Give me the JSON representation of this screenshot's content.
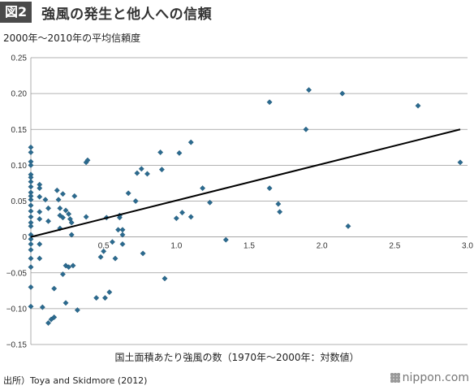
{
  "figure": {
    "badge": "図2",
    "title": "強風の発生と他人への信頼"
  },
  "source_note": "出所）Toya and Skidmore (2012)",
  "brand": "nippon.com",
  "chart_data": {
    "type": "scatter",
    "title": "強風の発生と他人への信頼",
    "ylabel": "2000年～2010年の平均信頼度",
    "xlabel": "国土面積あたり強風の数（1970年～2000年：対数値）",
    "xlim": [
      0,
      3.0
    ],
    "ylim": [
      -0.15,
      0.25
    ],
    "xticks": [
      0.5,
      1.0,
      1.5,
      2.0,
      2.5,
      3.0
    ],
    "xtick_labels": [
      "0.5",
      "1.0",
      "1.5",
      "2.0",
      "2.5",
      "3.0"
    ],
    "yticks": [
      0.25,
      0.2,
      0.15,
      0.1,
      0.05,
      0,
      -0.05,
      -0.1,
      -0.15
    ],
    "ytick_labels": [
      "0.25",
      "0.20",
      "0.15",
      "0.10",
      "0.05",
      "0",
      "−0.05",
      "−0.10",
      "−0.15"
    ],
    "grid": "horizontal",
    "point_color": "#2b6a8f",
    "line_color": "#000000",
    "trendline": {
      "x": [
        0,
        2.95
      ],
      "y": [
        0,
        0.15
      ]
    },
    "points": [
      [
        0.0,
        0.125
      ],
      [
        0.0,
        0.118
      ],
      [
        0.0,
        0.105
      ],
      [
        0.0,
        0.1
      ],
      [
        0.0,
        0.087
      ],
      [
        0.0,
        0.083
      ],
      [
        0.0,
        0.077
      ],
      [
        0.0,
        0.07
      ],
      [
        0.0,
        0.062
      ],
      [
        0.0,
        0.057
      ],
      [
        0.0,
        0.052
      ],
      [
        0.0,
        0.044
      ],
      [
        0.0,
        0.036
      ],
      [
        0.0,
        0.028
      ],
      [
        0.0,
        0.02
      ],
      [
        0.0,
        0.015
      ],
      [
        0.0,
        0.003
      ],
      [
        0.0,
        -0.003
      ],
      [
        0.0,
        -0.01
      ],
      [
        0.0,
        -0.018
      ],
      [
        0.0,
        -0.03
      ],
      [
        0.0,
        -0.042
      ],
      [
        0.0,
        -0.07
      ],
      [
        0.0,
        -0.097
      ],
      [
        0.06,
        0.073
      ],
      [
        0.06,
        0.068
      ],
      [
        0.06,
        0.056
      ],
      [
        0.06,
        0.035
      ],
      [
        0.06,
        0.025
      ],
      [
        0.06,
        -0.01
      ],
      [
        0.06,
        -0.03
      ],
      [
        0.08,
        -0.098
      ],
      [
        0.1,
        0.052
      ],
      [
        0.12,
        0.04
      ],
      [
        0.12,
        0.022
      ],
      [
        0.12,
        -0.12
      ],
      [
        0.14,
        -0.115
      ],
      [
        0.16,
        -0.072
      ],
      [
        0.16,
        -0.112
      ],
      [
        0.18,
        0.065
      ],
      [
        0.19,
        0.052
      ],
      [
        0.2,
        0.04
      ],
      [
        0.2,
        0.03
      ],
      [
        0.2,
        0.012
      ],
      [
        0.22,
        0.06
      ],
      [
        0.22,
        0.027
      ],
      [
        0.22,
        -0.052
      ],
      [
        0.24,
        0.037
      ],
      [
        0.24,
        -0.04
      ],
      [
        0.24,
        -0.092
      ],
      [
        0.26,
        0.032
      ],
      [
        0.26,
        -0.042
      ],
      [
        0.27,
        0.025
      ],
      [
        0.28,
        0.02
      ],
      [
        0.28,
        0.003
      ],
      [
        0.29,
        -0.04
      ],
      [
        0.3,
        0.057
      ],
      [
        0.32,
        -0.102
      ],
      [
        0.38,
        0.104
      ],
      [
        0.39,
        0.107
      ],
      [
        0.38,
        0.028
      ],
      [
        0.45,
        -0.085
      ],
      [
        0.48,
        -0.028
      ],
      [
        0.5,
        -0.02
      ],
      [
        0.51,
        -0.085
      ],
      [
        0.52,
        0.027
      ],
      [
        0.54,
        -0.077
      ],
      [
        0.56,
        -0.007
      ],
      [
        0.58,
        -0.03
      ],
      [
        0.6,
        0.01
      ],
      [
        0.61,
        0.027
      ],
      [
        0.61,
        0.03
      ],
      [
        0.63,
        0.01
      ],
      [
        0.63,
        0.003
      ],
      [
        0.63,
        -0.01
      ],
      [
        0.67,
        0.061
      ],
      [
        0.72,
        0.05
      ],
      [
        0.73,
        0.089
      ],
      [
        0.76,
        0.095
      ],
      [
        0.77,
        -0.023
      ],
      [
        0.8,
        0.088
      ],
      [
        0.89,
        0.118
      ],
      [
        0.9,
        0.094
      ],
      [
        0.92,
        -0.058
      ],
      [
        1.0,
        0.026
      ],
      [
        1.02,
        0.117
      ],
      [
        1.04,
        0.034
      ],
      [
        1.1,
        0.028
      ],
      [
        1.1,
        0.132
      ],
      [
        1.18,
        0.068
      ],
      [
        1.23,
        0.048
      ],
      [
        1.34,
        -0.004
      ],
      [
        1.64,
        0.188
      ],
      [
        1.64,
        0.068
      ],
      [
        1.7,
        0.046
      ],
      [
        1.71,
        0.035
      ],
      [
        1.89,
        0.15
      ],
      [
        1.91,
        0.205
      ],
      [
        2.14,
        0.2
      ],
      [
        2.18,
        0.015
      ],
      [
        2.66,
        0.183
      ],
      [
        2.95,
        0.104
      ]
    ]
  }
}
